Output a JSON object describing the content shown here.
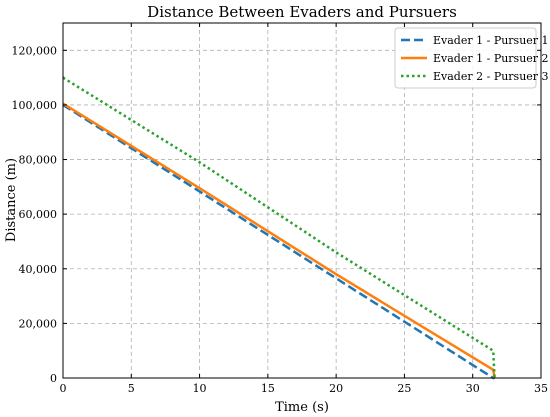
{
  "chart_data": {
    "type": "line",
    "title": "Distance Between Evaders and Pursuers",
    "xlabel": "Time (s)",
    "ylabel": "Distance (m)",
    "xlim": [
      0,
      35
    ],
    "ylim": [
      0,
      130000
    ],
    "xticks": [
      0,
      5,
      10,
      15,
      20,
      25,
      30,
      35
    ],
    "xtick_labels": [
      "0",
      "5",
      "10",
      "15",
      "20",
      "25",
      "30",
      "35"
    ],
    "yticks": [
      0,
      20000,
      40000,
      60000,
      80000,
      100000,
      120000
    ],
    "ytick_labels": [
      "0",
      "20,000",
      "40,000",
      "60,000",
      "80,000",
      "100,000",
      "120,000"
    ],
    "grid": true,
    "legend_position": "top-right",
    "series": [
      {
        "name": "Evader 1 - Pursuer 1",
        "color": "#1f77b4",
        "style": "dashed",
        "x": [
          0,
          10,
          20,
          31.5,
          31.6
        ],
        "y": [
          100000,
          68300,
          36500,
          0,
          0
        ]
      },
      {
        "name": "Evader 1 - Pursuer 2",
        "color": "#ff7f0e",
        "style": "solid",
        "x": [
          0,
          10,
          20,
          31.5,
          31.6
        ],
        "y": [
          100500,
          69500,
          38000,
          3000,
          0
        ]
      },
      {
        "name": "Evader 2 - Pursuer 3",
        "color": "#2ca02c",
        "style": "dotted",
        "x": [
          0,
          10,
          20,
          31.5,
          31.6
        ],
        "y": [
          110000,
          79000,
          46000,
          10000,
          0
        ]
      }
    ]
  }
}
